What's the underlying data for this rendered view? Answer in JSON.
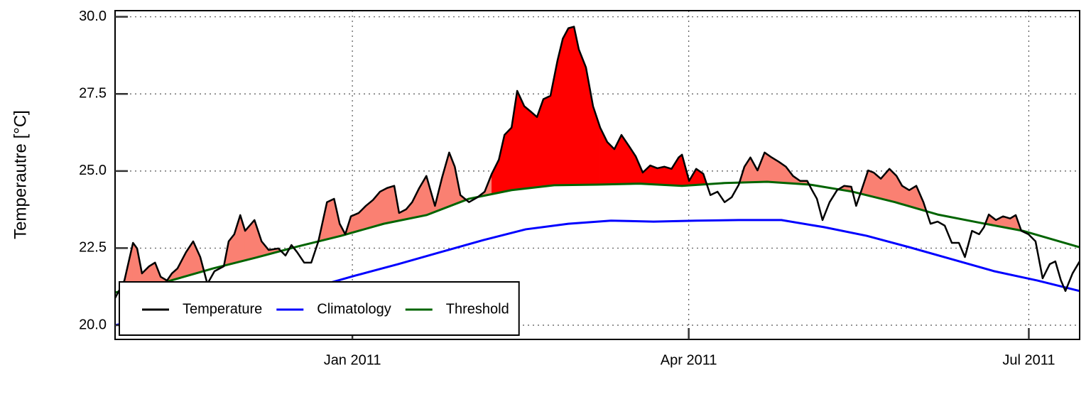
{
  "chart_data": {
    "type": "line",
    "y_label": "Temperautre [°C]",
    "xlim": [
      -63.5,
      194.6
    ],
    "xticks": [
      {
        "value": 0,
        "label": "Jan 2011"
      },
      {
        "value": 90,
        "label": "Apr 2011"
      },
      {
        "value": 181,
        "label": "Jul 2011"
      }
    ],
    "ylim": [
      19.54,
      30.2
    ],
    "yticks": [
      {
        "value": 20,
        "label": "20.0"
      },
      {
        "value": 22.5,
        "label": "22.5"
      },
      {
        "value": 25,
        "label": "25.0"
      },
      {
        "value": 27.5,
        "label": "27.5"
      },
      {
        "value": 30,
        "label": "30.0"
      }
    ],
    "grid": true,
    "legend": "lower left",
    "fill_color": "#fa8072",
    "highlight_color": "#ff0000",
    "highlight_xlim": [
      36.5,
      95.5
    ],
    "series": [
      {
        "name": "Temperature",
        "color": "#000000",
        "x": [
          -63.5,
          -61.0,
          -58.7,
          -57.6,
          -56.3,
          -54.4,
          -52.8,
          -51.3,
          -49.6,
          -48.3,
          -46.8,
          -44.5,
          -42.6,
          -40.7,
          -38.8,
          -36.9,
          -34.4,
          -33.1,
          -31.6,
          -30.0,
          -28.7,
          -26.2,
          -24.3,
          -22.4,
          -19.8,
          -17.9,
          -16.3,
          -14.8,
          -12.9,
          -11.0,
          -9.1,
          -6.8,
          -4.9,
          -3.4,
          -1.9,
          -0.4,
          1.7,
          3.6,
          5.5,
          7.4,
          9.3,
          11.2,
          12.5,
          14.4,
          16.0,
          17.9,
          19.8,
          22.1,
          24.0,
          25.9,
          27.4,
          28.9,
          31.2,
          33.5,
          35.4,
          37.3,
          39.2,
          40.7,
          42.6,
          44.1,
          46.0,
          47.9,
          49.4,
          51.1,
          53.0,
          54.9,
          56.3,
          57.8,
          59.3,
          60.6,
          62.5,
          64.4,
          66.3,
          68.2,
          70.1,
          72.0,
          73.9,
          75.8,
          77.7,
          79.7,
          81.6,
          83.5,
          85.4,
          87.3,
          88.2,
          90.1,
          92.0,
          93.9,
          95.8,
          97.7,
          99.6,
          101.5,
          103.4,
          104.9,
          106.5,
          108.4,
          110.3,
          112.2,
          114.1,
          116.0,
          117.9,
          119.8,
          121.7,
          123.0,
          124.3,
          125.8,
          127.7,
          129.7,
          131.6,
          133.5,
          134.8,
          136.1,
          138.0,
          139.5,
          141.4,
          143.7,
          145.6,
          147.1,
          149.0,
          150.9,
          152.8,
          154.7,
          156.6,
          158.5,
          160.4,
          162.3,
          163.9,
          165.8,
          167.7,
          169.0,
          170.3,
          172.2,
          174.1,
          176.0,
          177.5,
          179.0,
          180.9,
          182.8,
          184.7,
          186.6,
          188.1,
          189.6,
          190.8,
          192.7,
          194.6
        ],
        "values": [
          20.88,
          21.45,
          22.67,
          22.49,
          21.68,
          21.91,
          22.03,
          21.57,
          21.45,
          21.68,
          21.84,
          22.37,
          22.72,
          22.21,
          21.34,
          21.75,
          21.91,
          22.72,
          22.95,
          23.57,
          23.06,
          23.41,
          22.72,
          22.44,
          22.49,
          22.26,
          22.6,
          22.37,
          22.03,
          22.03,
          22.72,
          23.99,
          24.1,
          23.29,
          22.95,
          23.53,
          23.64,
          23.87,
          24.06,
          24.33,
          24.45,
          24.52,
          23.64,
          23.76,
          23.99,
          24.45,
          24.84,
          23.87,
          24.79,
          25.6,
          25.14,
          24.22,
          23.99,
          24.15,
          24.33,
          24.91,
          25.37,
          26.17,
          26.41,
          27.6,
          27.1,
          26.91,
          26.75,
          27.33,
          27.44,
          28.59,
          29.29,
          29.63,
          29.68,
          28.94,
          28.36,
          27.1,
          26.41,
          25.94,
          25.71,
          26.17,
          25.83,
          25.48,
          24.95,
          25.18,
          25.09,
          25.14,
          25.07,
          25.44,
          25.53,
          24.68,
          25.07,
          24.91,
          24.22,
          24.33,
          23.99,
          24.15,
          24.56,
          25.14,
          25.44,
          25.02,
          25.6,
          25.44,
          25.3,
          25.14,
          24.84,
          24.68,
          24.68,
          24.38,
          24.1,
          23.41,
          23.99,
          24.38,
          24.52,
          24.49,
          23.87,
          24.33,
          25.02,
          24.95,
          24.75,
          25.07,
          24.84,
          24.52,
          24.38,
          24.52,
          23.99,
          23.29,
          23.36,
          23.23,
          22.67,
          22.67,
          22.21,
          23.06,
          22.95,
          23.18,
          23.59,
          23.41,
          23.53,
          23.46,
          23.57,
          23.06,
          22.95,
          22.72,
          21.52,
          21.98,
          22.07,
          21.45,
          21.11,
          21.68,
          22.07
        ]
      },
      {
        "name": "Climatology",
        "color": "#0000ff",
        "x": [
          -63.5,
          -37.3,
          -10.6,
          0.8,
          12.2,
          23.6,
          35.0,
          46.4,
          57.8,
          69.2,
          80.6,
          92.0,
          103.4,
          114.8,
          126.2,
          137.6,
          149.0,
          160.4,
          171.8,
          183.3,
          194.6
        ],
        "values": [
          20.0,
          20.65,
          21.22,
          21.61,
          21.98,
          22.37,
          22.76,
          23.11,
          23.29,
          23.39,
          23.36,
          23.39,
          23.41,
          23.41,
          23.18,
          22.9,
          22.53,
          22.14,
          21.75,
          21.45,
          21.11
        ]
      },
      {
        "name": "Threshold",
        "color": "#006400",
        "x": [
          -63.5,
          -50.6,
          -37.3,
          -25.9,
          -14.4,
          -3.0,
          8.4,
          19.8,
          31.2,
          42.6,
          54.0,
          65.4,
          76.8,
          88.2,
          99.6,
          111.0,
          122.4,
          133.8,
          145.2,
          156.6,
          168.0,
          179.4,
          194.6
        ],
        "values": [
          21.06,
          21.38,
          21.84,
          22.19,
          22.56,
          22.9,
          23.29,
          23.57,
          24.1,
          24.38,
          24.54,
          24.56,
          24.59,
          24.52,
          24.61,
          24.65,
          24.56,
          24.33,
          23.99,
          23.59,
          23.32,
          23.06,
          22.53
        ]
      }
    ]
  }
}
